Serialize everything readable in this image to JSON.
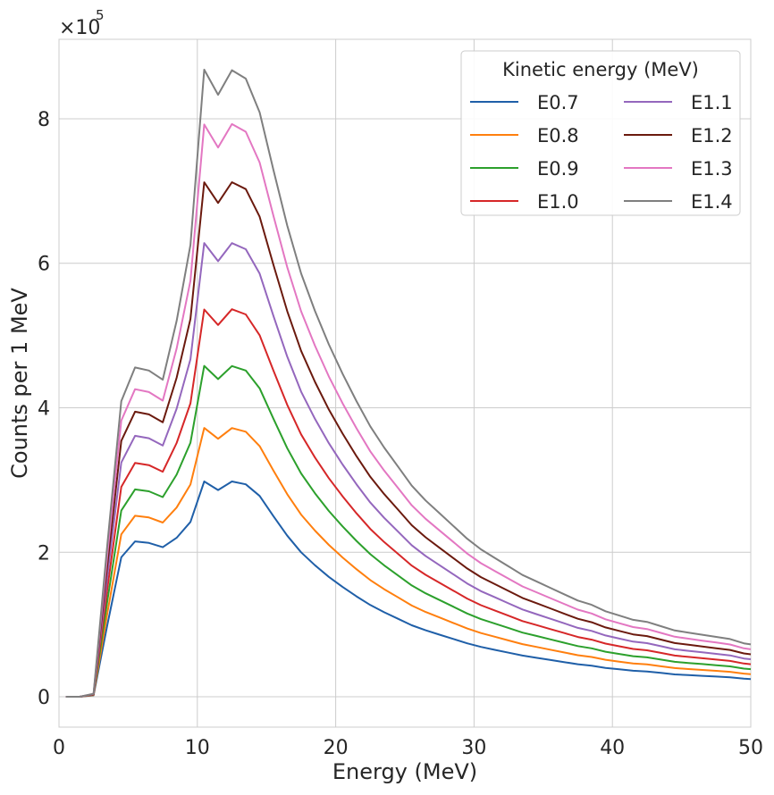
{
  "chart_data": {
    "type": "line",
    "xlabel": "Energy (MeV)",
    "ylabel": "Counts per 1 MeV",
    "y_multiplier": "×10",
    "y_multiplier_exponent": "5",
    "xlim": [
      0,
      50
    ],
    "ylim": [
      -0.42,
      9.1
    ],
    "x_ticks": [
      0,
      10,
      20,
      30,
      40,
      50
    ],
    "x_tick_labels": [
      "0",
      "10",
      "20",
      "30",
      "40",
      "50"
    ],
    "y_ticks": [
      0,
      2,
      4,
      6,
      8
    ],
    "y_tick_labels": [
      "0",
      "2",
      "4",
      "6",
      "8"
    ],
    "grid": true,
    "legend": {
      "title": "Kinetic energy (MeV)",
      "placement": "top-right",
      "columns": 2
    },
    "x": [
      0.5,
      1.5,
      2.5,
      3.5,
      4.5,
      5.5,
      6.5,
      7.5,
      8.5,
      9.5,
      10.5,
      11.5,
      12.5,
      13.5,
      14.5,
      15.5,
      16.5,
      17.5,
      18.5,
      19.5,
      20.5,
      21.5,
      22.5,
      23.5,
      24.5,
      25.5,
      26.5,
      27.5,
      28.5,
      29.5,
      30.5,
      31.5,
      32.5,
      33.5,
      34.5,
      35.5,
      36.5,
      37.5,
      38.5,
      39.5,
      40.5,
      41.5,
      42.5,
      43.5,
      44.5,
      45.5,
      46.5,
      47.5,
      48.5,
      49.5,
      50.0
    ],
    "series": [
      {
        "name": "E0.7",
        "color": "#1f5fa8",
        "peak": 2.98
      },
      {
        "name": "E0.8",
        "color": "#ff7f0e",
        "peak": 3.72
      },
      {
        "name": "E0.9",
        "color": "#2ca02c",
        "peak": 4.58
      },
      {
        "name": "E1.0",
        "color": "#d62728",
        "peak": 5.36
      },
      {
        "name": "E1.1",
        "color": "#9467bd",
        "peak": 6.28
      },
      {
        "name": "E1.2",
        "color": "#6b1a0e",
        "peak": 7.12
      },
      {
        "name": "E1.3",
        "color": "#e377c2",
        "peak": 7.92
      },
      {
        "name": "E1.4",
        "color": "#7f7f7f",
        "peak": 8.68
      }
    ]
  }
}
